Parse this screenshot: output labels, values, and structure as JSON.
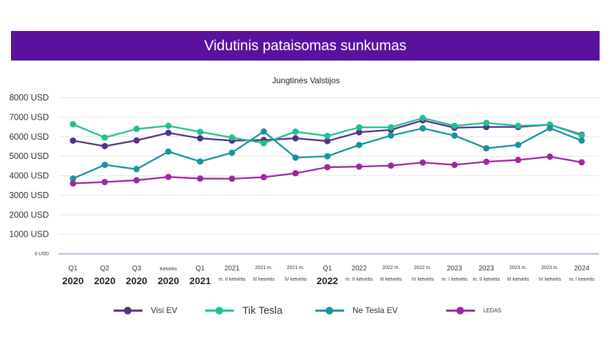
{
  "header": {
    "title": "Vidutinis pataisomas sunkumas"
  },
  "chart_data": {
    "type": "line",
    "title": "Vidutinis pataisomas sunkumas",
    "subtitle": "Jungtinės Valstijos",
    "xlabel": "",
    "ylabel": "",
    "ylim": [
      0,
      8000
    ],
    "y_ticks": [
      {
        "value": 8000,
        "label": "8000 USD"
      },
      {
        "value": 7000,
        "label": "7000 USD"
      },
      {
        "value": 6000,
        "label": "6000 USD"
      },
      {
        "value": 5000,
        "label": "5000 USD"
      },
      {
        "value": 4000,
        "label": "4000 USD"
      },
      {
        "value": 3000,
        "label": "3000 USD"
      },
      {
        "value": 2000,
        "label": "2000 USD"
      },
      {
        "value": 1000,
        "label": "1000 USD"
      },
      {
        "value": 0,
        "label": "0 USD"
      }
    ],
    "categories": [
      {
        "top": "Q1",
        "bottom": "2020"
      },
      {
        "top": "Q2",
        "bottom": "2020"
      },
      {
        "top": "Q3",
        "bottom": "2020"
      },
      {
        "top": "Ketvirtis",
        "bottom": "2020"
      },
      {
        "top": "Q1",
        "bottom": "2021"
      },
      {
        "top": "2021",
        "bottom": "m. II ketvirtis"
      },
      {
        "top": "2021 m.",
        "bottom": "III ketvirtis"
      },
      {
        "top": "2021 m.",
        "bottom": "IV ketvirtis"
      },
      {
        "top": "Q1",
        "bottom": "2022"
      },
      {
        "top": "2022",
        "bottom": "m. II ketvirtis"
      },
      {
        "top": "2022 m.",
        "bottom": "III ketvirtis"
      },
      {
        "top": "2022 m.",
        "bottom": "IV ketvirtis"
      },
      {
        "top": "2023",
        "bottom": "m. I ketvirtis"
      },
      {
        "top": "2023",
        "bottom": "m. II ketvirtis"
      },
      {
        "top": "2023 m.",
        "bottom": "III ketvirtis"
      },
      {
        "top": "2023 m.",
        "bottom": "IV ketvirtis"
      },
      {
        "top": "2024",
        "bottom": "m. I ketvirtis"
      }
    ],
    "series": [
      {
        "name": "Visi EV",
        "color": "#553184",
        "label_size": "12",
        "values": [
          5800,
          5520,
          5810,
          6200,
          5920,
          5800,
          5830,
          5920,
          5780,
          6230,
          6350,
          6840,
          6460,
          6500,
          6500,
          6620,
          6100
        ]
      },
      {
        "name": "Tik Tesla",
        "color": "#21c08f",
        "label_size": "15",
        "values": [
          6640,
          5960,
          6400,
          6560,
          6250,
          5960,
          5670,
          6260,
          6040,
          6480,
          6480,
          6960,
          6560,
          6710,
          6560,
          6620,
          6060
        ]
      },
      {
        "name": "Ne Tesla EV",
        "color": "#19939c",
        "label_size": "12",
        "values": [
          3860,
          4560,
          4340,
          5240,
          4730,
          5180,
          6270,
          4930,
          5000,
          5580,
          6060,
          6430,
          6060,
          5410,
          5580,
          6440,
          5800
        ]
      },
      {
        "name": "LEDAS",
        "color": "#a0289e",
        "label_size": "8",
        "values": [
          3610,
          3680,
          3770,
          3940,
          3860,
          3850,
          3930,
          4130,
          4440,
          4470,
          4520,
          4680,
          4560,
          4720,
          4810,
          4980,
          4690
        ]
      }
    ],
    "legend_position": "bottom"
  }
}
